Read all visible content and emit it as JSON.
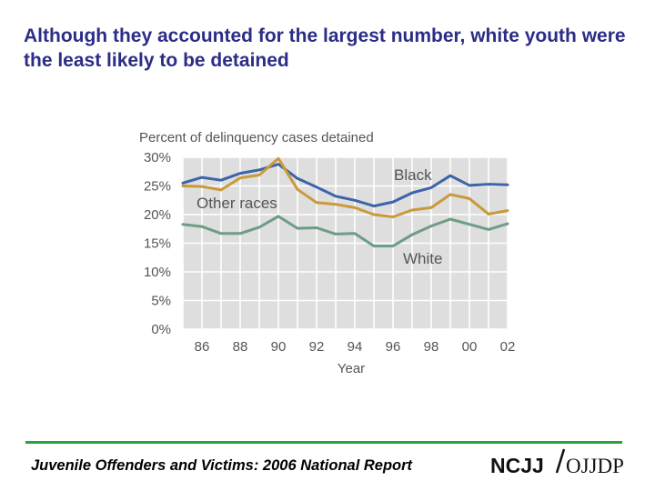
{
  "slide": {
    "title": "Although they accounted for the largest number, white youth were the least likely to be detained",
    "footer": "Juvenile Offenders and Victims: 2006 National Report",
    "logo_left": "NCJJ",
    "logo_right": "OJJDP"
  },
  "colors": {
    "title": "#2b2d86",
    "footer_rule": "#27a33b",
    "grid_bg": "#dedede",
    "grid_lines": "#ffffff",
    "black_series": "#3d64a9",
    "other_series": "#c99a3a",
    "white_series": "#6d9d85"
  },
  "chart_data": {
    "type": "line",
    "title": "Percent of delinquency cases detained",
    "xlabel": "Year",
    "ylabel": "",
    "x": [
      1985,
      1986,
      1987,
      1988,
      1989,
      1990,
      1991,
      1992,
      1993,
      1994,
      1995,
      1996,
      1997,
      1998,
      1999,
      2000,
      2001,
      2002
    ],
    "xticks": [
      {
        "value": 1986,
        "label": "86"
      },
      {
        "value": 1988,
        "label": "88"
      },
      {
        "value": 1990,
        "label": "90"
      },
      {
        "value": 1992,
        "label": "92"
      },
      {
        "value": 1994,
        "label": "94"
      },
      {
        "value": 1996,
        "label": "96"
      },
      {
        "value": 1998,
        "label": "98"
      },
      {
        "value": 2000,
        "label": "00"
      },
      {
        "value": 2002,
        "label": "02"
      }
    ],
    "yticks": [
      {
        "value": 0,
        "label": "0%"
      },
      {
        "value": 5,
        "label": "5%"
      },
      {
        "value": 10,
        "label": "10%"
      },
      {
        "value": 15,
        "label": "15%"
      },
      {
        "value": 20,
        "label": "20%"
      },
      {
        "value": 25,
        "label": "25%"
      },
      {
        "value": 30,
        "label": "30%"
      }
    ],
    "xlim": [
      1985,
      2002
    ],
    "ylim": [
      0,
      30
    ],
    "grid": true,
    "series": [
      {
        "name": "Black",
        "color": "#3d64a9",
        "values": [
          25.5,
          26.5,
          26.0,
          27.2,
          27.8,
          28.8,
          26.3,
          24.8,
          23.2,
          22.5,
          21.5,
          22.2,
          23.8,
          24.7,
          26.8,
          25.1,
          25.3,
          25.2
        ]
      },
      {
        "name": "Other races",
        "color": "#c99a3a",
        "values": [
          25.0,
          24.9,
          24.3,
          26.4,
          26.9,
          29.8,
          24.4,
          22.1,
          21.8,
          21.2,
          20.0,
          19.6,
          20.8,
          21.2,
          23.5,
          22.8,
          20.1,
          20.7
        ]
      },
      {
        "name": "White",
        "color": "#6d9d85",
        "values": [
          18.3,
          17.9,
          16.7,
          16.7,
          17.8,
          19.7,
          17.6,
          17.7,
          16.6,
          16.7,
          14.5,
          14.5,
          16.5,
          18.0,
          19.2,
          18.3,
          17.4,
          18.4
        ]
      }
    ]
  }
}
